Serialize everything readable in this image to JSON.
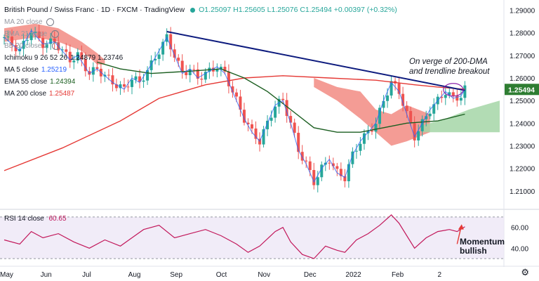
{
  "header": {
    "title": "British Pound / Swiss Franc · 1D · FXCM · TradingView",
    "ohlc": "O1.25097  H1.25605  L1.25076  C1.25494  +0.00397 (+0.32%)"
  },
  "legend": [
    {
      "label": "MA 20 close",
      "value": "",
      "color": "#787b86",
      "muted": true
    },
    {
      "label": "EMA 21 close",
      "value": "",
      "color": "#787b86",
      "muted": true
    },
    {
      "label": "BB 20 close 2",
      "value": "",
      "color": "#787b86",
      "muted": true
    },
    {
      "label": "Ichimoku 9 26 52 26",
      "value": "1.24879  1.23746",
      "color": "#131722",
      "muted": false
    },
    {
      "label": "MA 5 close",
      "value": "1.25219",
      "color": "#2962ff",
      "muted": false
    },
    {
      "label": "EMA 55 close",
      "value": "1.24394",
      "color": "#1b5e20",
      "muted": false
    },
    {
      "label": "MA 200 close",
      "value": "1.25487",
      "color": "#e53935",
      "muted": false
    }
  ],
  "rsi_legend": {
    "label": "RSI 14 close",
    "value": "60.65"
  },
  "annotations": {
    "breakout": [
      "On verge of 200-DMA",
      "and trendline breakout"
    ],
    "momentum": [
      "Momentum",
      "bullish"
    ]
  },
  "colors": {
    "up": "#26a69a",
    "down": "#ef5350",
    "trend": "#0d1b7e",
    "ma200": "#e53935",
    "ema55": "#1b5e20",
    "ma5": "#2962ff",
    "cloud_bear": "#f28b82",
    "cloud_bull": "#a5d6a7",
    "rsi": "#c2185b",
    "rsi_band": "#ede7f6",
    "last_price_bg": "#2e7d32"
  },
  "chart_data": [
    {
      "type": "candlestick",
      "title": "British Pound / Swiss Franc · 1D · FXCM",
      "y_ticks": [
        1.29,
        1.28,
        1.27,
        1.26,
        1.25,
        1.24,
        1.23,
        1.22,
        1.21
      ],
      "ylim": [
        1.2025,
        1.2945
      ],
      "x_ticks": [
        "May",
        "Jun",
        "Jul",
        "Aug",
        "Sep",
        "Oct",
        "Nov",
        "Dec",
        "2022",
        "Feb",
        "2"
      ],
      "last_price": "1.25494",
      "close_path": [
        [
          0,
          1.278
        ],
        [
          4,
          1.272
        ],
        [
          7,
          1.281
        ],
        [
          10,
          1.275
        ],
        [
          13,
          1.276
        ],
        [
          17,
          1.268
        ],
        [
          19,
          1.27
        ],
        [
          22,
          1.262
        ],
        [
          24,
          1.264
        ],
        [
          28,
          1.258
        ],
        [
          31,
          1.255
        ],
        [
          33,
          1.26
        ],
        [
          35,
          1.258
        ],
        [
          38,
          1.266
        ],
        [
          40,
          1.272
        ],
        [
          42,
          1.278
        ],
        [
          44,
          1.27
        ],
        [
          46,
          1.262
        ],
        [
          48,
          1.264
        ],
        [
          50,
          1.26
        ],
        [
          52,
          1.262
        ],
        [
          55,
          1.265
        ],
        [
          57,
          1.262
        ],
        [
          58,
          1.258
        ],
        [
          60,
          1.25
        ],
        [
          62,
          1.242
        ],
        [
          64,
          1.236
        ],
        [
          66,
          1.232
        ],
        [
          68,
          1.24
        ],
        [
          70,
          1.248
        ],
        [
          72,
          1.25
        ],
        [
          74,
          1.24
        ],
        [
          76,
          1.228
        ],
        [
          78,
          1.222
        ],
        [
          80,
          1.214
        ],
        [
          82,
          1.22
        ],
        [
          84,
          1.224
        ],
        [
          86,
          1.218
        ],
        [
          88,
          1.216
        ],
        [
          90,
          1.226
        ],
        [
          92,
          1.232
        ],
        [
          94,
          1.236
        ],
        [
          96,
          1.24
        ],
        [
          98,
          1.25
        ],
        [
          100,
          1.258
        ],
        [
          102,
          1.254
        ],
        [
          104,
          1.244
        ],
        [
          106,
          1.234
        ],
        [
          108,
          1.24
        ],
        [
          110,
          1.246
        ],
        [
          112,
          1.25
        ],
        [
          114,
          1.254
        ],
        [
          116,
          1.251
        ],
        [
          118,
          1.252
        ],
        [
          119,
          1.255
        ]
      ],
      "ma200": [
        [
          0,
          1.219
        ],
        [
          15,
          1.229
        ],
        [
          30,
          1.241
        ],
        [
          40,
          1.251
        ],
        [
          52,
          1.257
        ],
        [
          62,
          1.26
        ],
        [
          72,
          1.261
        ],
        [
          84,
          1.26
        ],
        [
          96,
          1.259
        ],
        [
          106,
          1.257
        ],
        [
          112,
          1.256
        ],
        [
          119,
          1.255
        ]
      ],
      "ema55": [
        [
          24,
          1.267
        ],
        [
          30,
          1.264
        ],
        [
          38,
          1.262
        ],
        [
          48,
          1.263
        ],
        [
          56,
          1.264
        ],
        [
          62,
          1.26
        ],
        [
          68,
          1.254
        ],
        [
          74,
          1.246
        ],
        [
          80,
          1.238
        ],
        [
          86,
          1.236
        ],
        [
          92,
          1.236
        ],
        [
          98,
          1.238
        ],
        [
          104,
          1.24
        ],
        [
          112,
          1.241
        ],
        [
          119,
          1.244
        ]
      ],
      "trendline": [
        [
          42,
          1.2805
        ],
        [
          119,
          1.2545
        ]
      ],
      "cloud_bear": [
        [
          0,
          1.282
        ],
        [
          8,
          1.284
        ],
        [
          14,
          1.282
        ],
        [
          20,
          1.276
        ],
        [
          24,
          1.271
        ],
        [
          26,
          1.268
        ]
      ],
      "cloud_bear_low": [
        [
          0,
          1.276
        ],
        [
          8,
          1.278
        ],
        [
          14,
          1.276
        ],
        [
          20,
          1.272
        ],
        [
          24,
          1.266
        ],
        [
          26,
          1.266
        ]
      ],
      "cloud_bear2": [
        [
          80,
          1.26
        ],
        [
          86,
          1.256
        ],
        [
          92,
          1.254
        ],
        [
          96,
          1.246
        ],
        [
          100,
          1.244
        ],
        [
          104,
          1.248
        ],
        [
          110,
          1.244
        ]
      ],
      "cloud_bear2_low": [
        [
          80,
          1.256
        ],
        [
          86,
          1.25
        ],
        [
          92,
          1.242
        ],
        [
          96,
          1.236
        ],
        [
          100,
          1.23
        ],
        [
          104,
          1.232
        ],
        [
          110,
          1.236
        ]
      ],
      "cloud_bull": [
        [
          108,
          1.239
        ],
        [
          114,
          1.242
        ],
        [
          120,
          1.246
        ],
        [
          126,
          1.249
        ],
        [
          128,
          1.25
        ]
      ],
      "cloud_bull_low": [
        [
          108,
          1.236
        ],
        [
          114,
          1.236
        ],
        [
          120,
          1.236
        ],
        [
          126,
          1.236
        ],
        [
          128,
          1.236
        ]
      ]
    },
    {
      "type": "line",
      "title": "RSI 14 close",
      "y_ticks": [
        60.0,
        40.0
      ],
      "ylim": [
        24,
        76
      ],
      "band": [
        30,
        70
      ],
      "values": [
        [
          0,
          48
        ],
        [
          4,
          44
        ],
        [
          7,
          56
        ],
        [
          10,
          50
        ],
        [
          14,
          54
        ],
        [
          18,
          46
        ],
        [
          22,
          40
        ],
        [
          26,
          48
        ],
        [
          30,
          42
        ],
        [
          33,
          50
        ],
        [
          36,
          58
        ],
        [
          40,
          62
        ],
        [
          44,
          50
        ],
        [
          48,
          54
        ],
        [
          52,
          58
        ],
        [
          56,
          52
        ],
        [
          60,
          44
        ],
        [
          63,
          36
        ],
        [
          66,
          42
        ],
        [
          70,
          56
        ],
        [
          72,
          60
        ],
        [
          74,
          46
        ],
        [
          77,
          34
        ],
        [
          80,
          30
        ],
        [
          83,
          42
        ],
        [
          86,
          38
        ],
        [
          88,
          36
        ],
        [
          91,
          48
        ],
        [
          94,
          54
        ],
        [
          97,
          62
        ],
        [
          100,
          72
        ],
        [
          102,
          64
        ],
        [
          104,
          52
        ],
        [
          106,
          40
        ],
        [
          109,
          50
        ],
        [
          112,
          56
        ],
        [
          115,
          58
        ],
        [
          117,
          56
        ],
        [
          119,
          60.65
        ]
      ]
    }
  ]
}
